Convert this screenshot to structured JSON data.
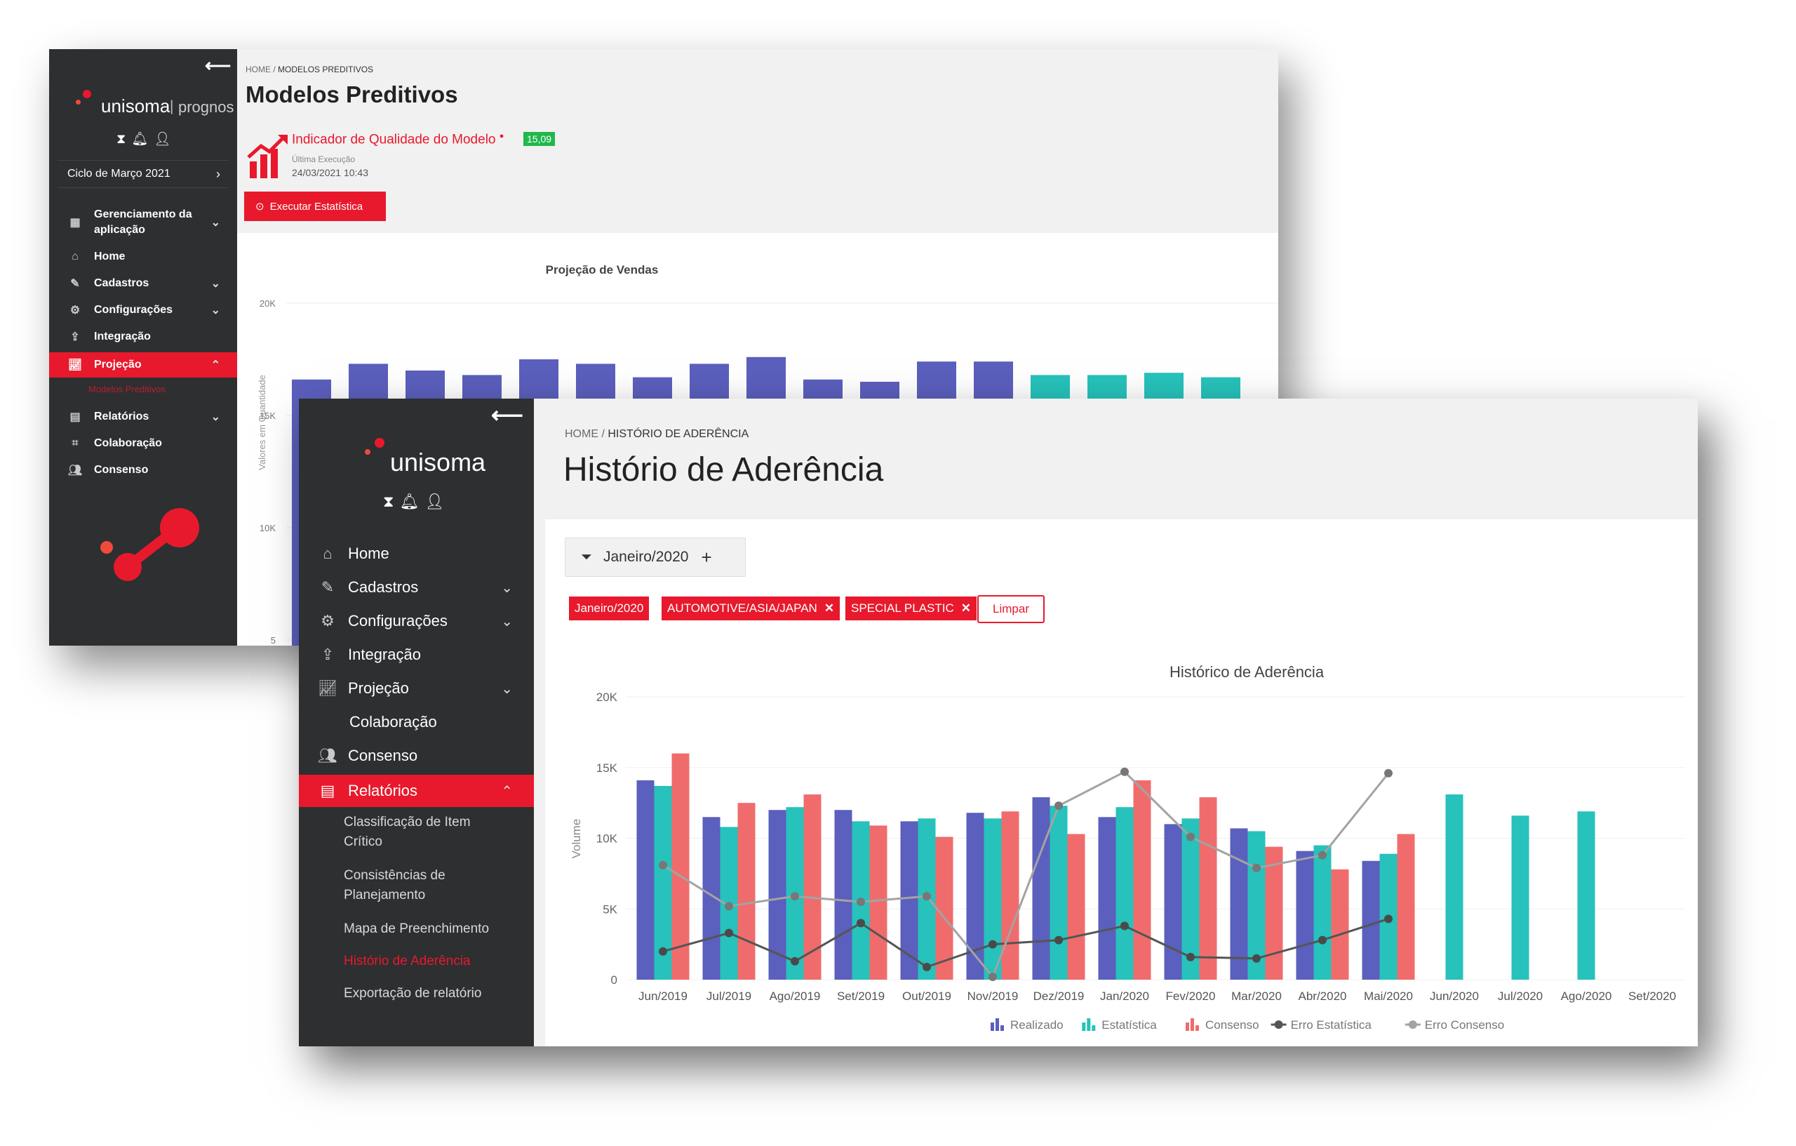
{
  "back_window": {
    "sidebar": {
      "logo_text": "unisoma",
      "logo_suffix": "prognos",
      "cycle_label": "Ciclo de Março 2021",
      "items": [
        {
          "label": "Gerenciamento da aplicação"
        },
        {
          "label": "Home"
        },
        {
          "label": "Cadastros"
        },
        {
          "label": "Configurações"
        },
        {
          "label": "Integração"
        },
        {
          "label": "Projeção"
        },
        {
          "label": "Modelos Preditivos"
        },
        {
          "label": "Relatórios"
        },
        {
          "label": "Colaboração"
        },
        {
          "label": "Consenso"
        }
      ]
    },
    "breadcrumb": {
      "home": "HOME",
      "current": "MODELOS PREDITIVOS"
    },
    "title": "Modelos Preditivos",
    "indicator": {
      "label": "Indicador de Qualidade do Modelo",
      "value": "15,09",
      "last_exec_label": "Última Execução",
      "last_exec_value": "24/03/2021 10:43"
    },
    "run_button": "Executar Estatística",
    "chart_data": {
      "type": "bar",
      "title": "Projeção de Vendas",
      "ylabel": "Valores em Quantidade",
      "yticks": [
        "20K",
        "15K",
        "10K",
        "5"
      ],
      "ylim": [
        0,
        20000
      ],
      "series": [
        {
          "color": "#5b5fbd",
          "values": [
            16600,
            17300,
            17000,
            16800,
            17500,
            17300,
            16700,
            17300,
            17600,
            16600,
            16500,
            17400,
            17400
          ]
        },
        {
          "color": "#26c2bb",
          "values": [
            null,
            null,
            null,
            null,
            null,
            null,
            null,
            null,
            null,
            null,
            null,
            null,
            null,
            16800,
            16800,
            16900,
            16700
          ]
        }
      ]
    }
  },
  "front_window": {
    "sidebar": {
      "logo_text": "unisoma",
      "items": [
        {
          "label": "Home"
        },
        {
          "label": "Cadastros"
        },
        {
          "label": "Configurações"
        },
        {
          "label": "Integração"
        },
        {
          "label": "Projeção"
        },
        {
          "label": "Colaboração"
        },
        {
          "label": "Consenso"
        },
        {
          "label": "Relatórios"
        }
      ],
      "sub_items": [
        {
          "label": "Classificação de Item Crítico"
        },
        {
          "label": "Consistências de Planejamento"
        },
        {
          "label": "Mapa de Preenchimento"
        },
        {
          "label": "Histório de Aderência"
        },
        {
          "label": "Exportação de relatório"
        }
      ]
    },
    "breadcrumb": {
      "home": "HOME",
      "current": "HISTÓRIO DE ADERÊNCIA"
    },
    "title": "Histório de Aderência",
    "filter": {
      "label": "Janeiro/2020",
      "add": "+"
    },
    "chips": [
      "Janeiro/2020",
      "AUTOMOTIVE/ASIA/JAPAN",
      "SPECIAL PLASTIC"
    ],
    "clear_button": "Limpar",
    "chart_data": {
      "type": "bar",
      "title": "Histórico de Aderência",
      "ylabel": "Volume",
      "yticks": [
        "20K",
        "15K",
        "10K",
        "5K",
        "0"
      ],
      "ylim": [
        0,
        20000
      ],
      "categories": [
        "Jun/2019",
        "Jul/2019",
        "Ago/2019",
        "Set/2019",
        "Out/2019",
        "Nov/2019",
        "Dez/2019",
        "Jan/2020",
        "Fev/2020",
        "Mar/2020",
        "Abr/2020",
        "Mai/2020",
        "Jun/2020",
        "Jul/2020",
        "Ago/2020",
        "Set/2020"
      ],
      "series": [
        {
          "name": "Realizado",
          "type": "bar",
          "color": "#5b5fbd",
          "values": [
            14100,
            11500,
            12000,
            12000,
            11200,
            11800,
            12900,
            11500,
            11000,
            10700,
            9100,
            8400,
            null,
            null,
            null,
            null
          ]
        },
        {
          "name": "Estatística",
          "type": "bar",
          "color": "#26c2bb",
          "values": [
            13700,
            10800,
            12200,
            11200,
            11400,
            11400,
            12300,
            12200,
            11400,
            10500,
            9500,
            8900,
            13100,
            11600,
            11900,
            null
          ]
        },
        {
          "name": "Consenso",
          "type": "bar",
          "color": "#f06c6c",
          "values": [
            16000,
            12500,
            13100,
            10900,
            10100,
            11900,
            10300,
            14100,
            12900,
            9400,
            7800,
            10300,
            null,
            null,
            null,
            null
          ]
        },
        {
          "name": "Erro Estatística",
          "type": "line",
          "color": "#555555",
          "values": [
            2000,
            3300,
            1300,
            4000,
            900,
            2500,
            2800,
            3800,
            1600,
            1500,
            2800,
            4300,
            null,
            null,
            null,
            null
          ]
        },
        {
          "name": "Erro Consenso",
          "type": "line",
          "color": "#a3a3a3",
          "values": [
            8100,
            5200,
            5900,
            5500,
            5900,
            200,
            12300,
            14700,
            10100,
            7900,
            8800,
            14600,
            null,
            null,
            null,
            null
          ]
        }
      ],
      "legend_position": "bottom"
    }
  },
  "colors": {
    "accent": "#e8192c",
    "sidebar": "#2d2f31",
    "realizado": "#5b5fbd",
    "estatistica": "#26c2bb",
    "consenso": "#f06c6c"
  }
}
